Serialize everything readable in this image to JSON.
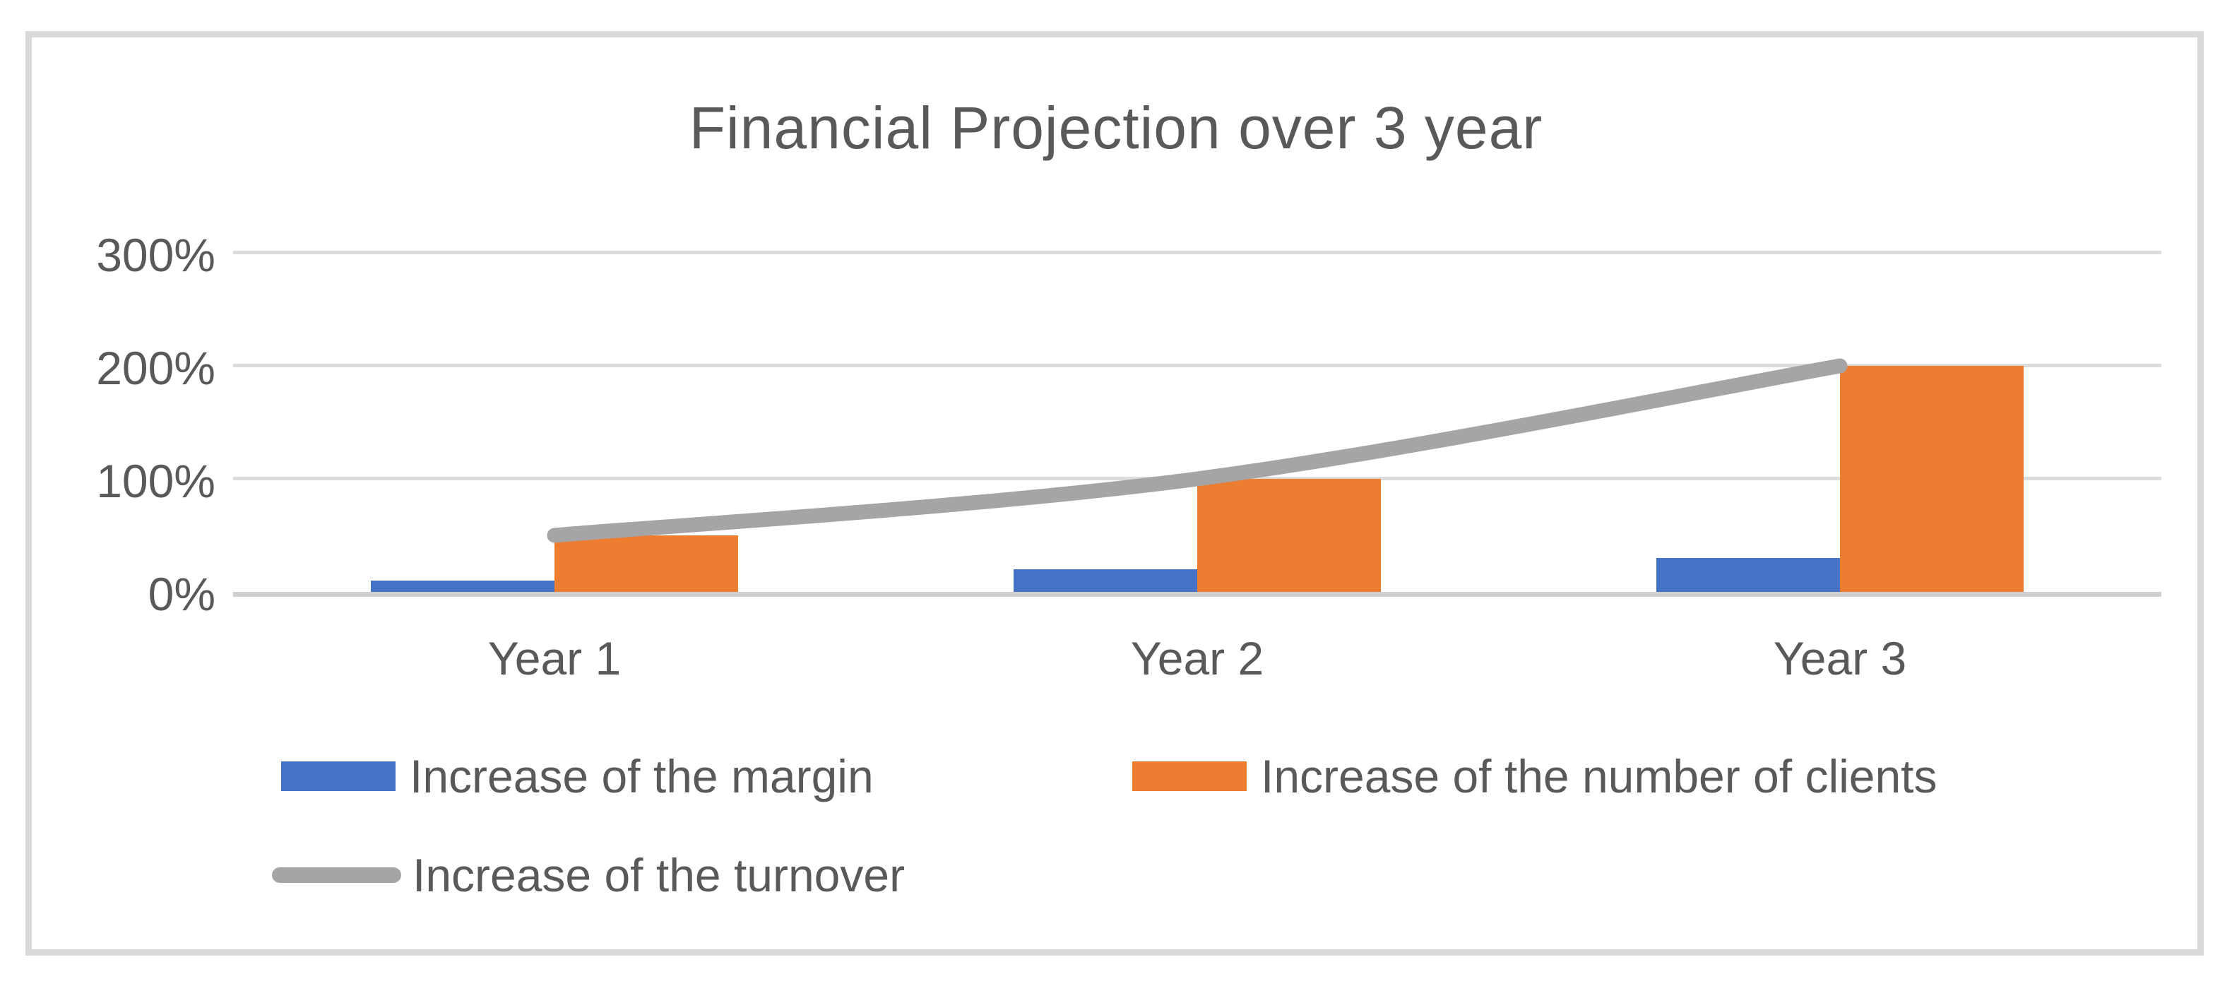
{
  "chart_data": {
    "type": "combo",
    "title": "Financial Projection over 3 year",
    "categories": [
      "Year 1",
      "Year 2",
      "Year 3"
    ],
    "series": [
      {
        "name": "Increase of the margin",
        "type": "bar",
        "color": "#4472c4",
        "values": [
          10,
          20,
          30
        ]
      },
      {
        "name": "Increase of the number of clients",
        "type": "bar",
        "color": "#ed7d31",
        "values": [
          50,
          100,
          200
        ]
      },
      {
        "name": "Increase of the turnover",
        "type": "line",
        "color": "#a5a5a5",
        "values": [
          50,
          100,
          200
        ]
      }
    ],
    "unit": "%",
    "ylim": [
      0,
      300
    ],
    "y_ticks": [
      {
        "label": "300%",
        "value": 300
      },
      {
        "label": "200%",
        "value": 200
      },
      {
        "label": "100%",
        "value": 100
      },
      {
        "label": "0%",
        "value": 0
      }
    ],
    "grid": true,
    "legend_position": "bottom",
    "colors": {
      "text": "#595959",
      "gridline": "#dcdcdc",
      "axis_line": "#cfcfcf",
      "frame_border": "#d9d9d9",
      "background": "#ffffff"
    }
  }
}
